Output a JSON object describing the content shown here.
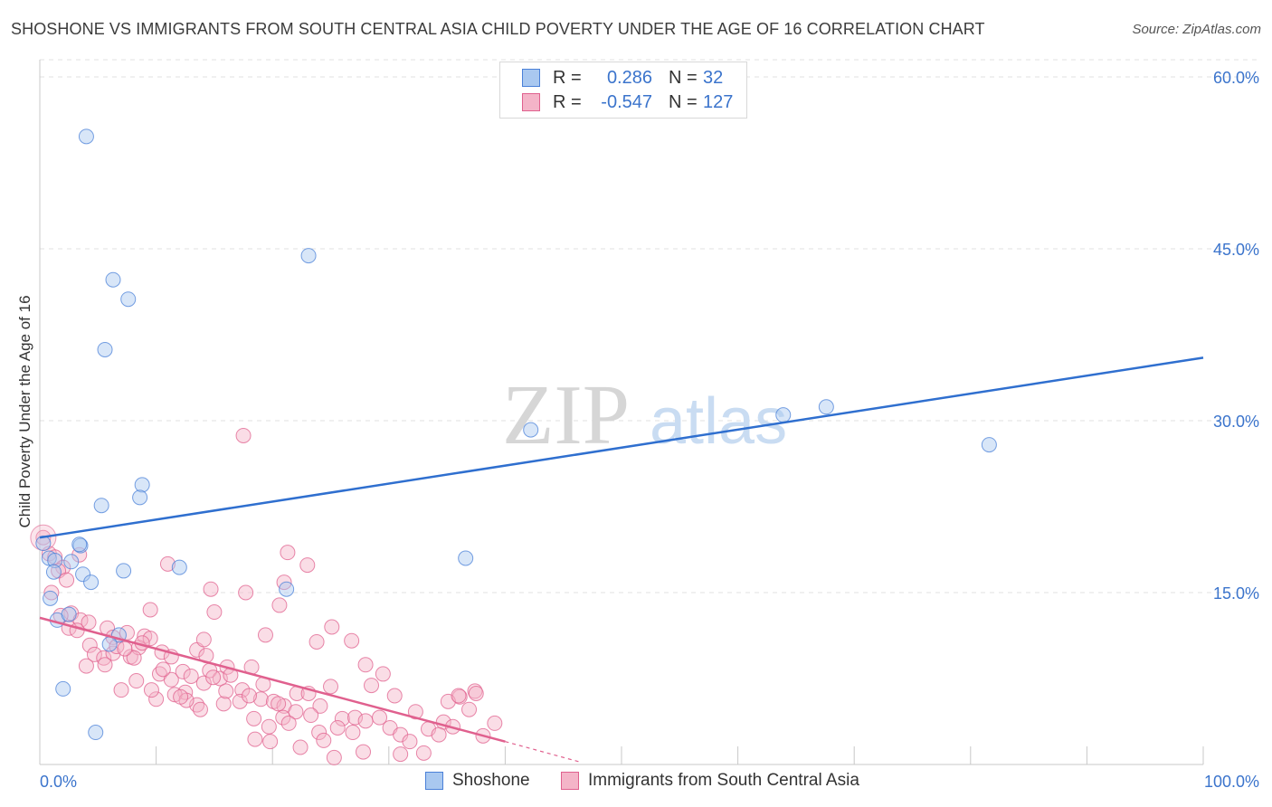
{
  "header": {
    "title": "SHOSHONE VS IMMIGRANTS FROM SOUTH CENTRAL ASIA CHILD POVERTY UNDER THE AGE OF 16 CORRELATION CHART",
    "source": "Source: ZipAtlas.com"
  },
  "watermark": {
    "zip": "ZIP",
    "atlas": "atlas"
  },
  "legend": {
    "rows": [
      {
        "r_label": "R =",
        "r_value": "0.286",
        "n_label": "N =",
        "n_value": "32"
      },
      {
        "r_label": "R =",
        "r_value": "-0.547",
        "n_label": "N =",
        "n_value": "127"
      }
    ]
  },
  "bottom_legend": {
    "series1": "Shoshone",
    "series2": "Immigrants from South Central Asia"
  },
  "chart_data": {
    "type": "scatter",
    "title": "SHOSHONE VS IMMIGRANTS FROM SOUTH CENTRAL ASIA CHILD POVERTY UNDER THE AGE OF 16 CORRELATION CHART",
    "xlabel": "",
    "ylabel": "Child Poverty Under the Age of 16",
    "xlim": [
      0,
      100
    ],
    "ylim": [
      0,
      61.5
    ],
    "x_tick_labels": [
      {
        "value": 0,
        "label": "0.0%"
      },
      {
        "value": 100,
        "label": "100.0%"
      }
    ],
    "y_tick_labels": [
      {
        "value": 15,
        "label": "15.0%"
      },
      {
        "value": 30,
        "label": "30.0%"
      },
      {
        "value": 45,
        "label": "45.0%"
      },
      {
        "value": 60,
        "label": "60.0%"
      }
    ],
    "grid": true,
    "colors": {
      "shoshone": "#4a80d8",
      "immigrants": "#e0608e",
      "shoshone_fill": "#a9c8f0",
      "immigrants_fill": "#f4b4c8"
    },
    "series": [
      {
        "name": "Shoshone",
        "r": 0.286,
        "n": 32,
        "trend": {
          "x0": 0,
          "y0": 19.8,
          "x1": 100,
          "y1": 35.5
        },
        "points": [
          [
            4.0,
            54.8
          ],
          [
            23.1,
            44.4
          ],
          [
            6.3,
            42.3
          ],
          [
            7.6,
            40.6
          ],
          [
            5.6,
            36.2
          ],
          [
            42.2,
            29.2
          ],
          [
            63.9,
            30.5
          ],
          [
            67.6,
            31.2
          ],
          [
            81.6,
            27.9
          ],
          [
            8.8,
            24.4
          ],
          [
            8.6,
            23.3
          ],
          [
            5.3,
            22.6
          ],
          [
            36.6,
            18.0
          ],
          [
            0.3,
            19.3
          ],
          [
            0.8,
            18.0
          ],
          [
            1.3,
            17.8
          ],
          [
            2.7,
            17.7
          ],
          [
            3.5,
            19.1
          ],
          [
            3.4,
            19.2
          ],
          [
            12.0,
            17.2
          ],
          [
            7.2,
            16.9
          ],
          [
            1.2,
            16.8
          ],
          [
            3.7,
            16.6
          ],
          [
            4.4,
            15.9
          ],
          [
            21.2,
            15.3
          ],
          [
            0.9,
            14.5
          ],
          [
            1.5,
            12.6
          ],
          [
            6.8,
            11.3
          ],
          [
            2.5,
            13.1
          ],
          [
            2.0,
            6.6
          ],
          [
            4.8,
            2.8
          ],
          [
            6.0,
            10.5
          ]
        ]
      },
      {
        "name": "Immigrants from South Central Asia",
        "r": -0.547,
        "n": 127,
        "trend": {
          "x0": 0,
          "y0": 12.8,
          "x1": 40,
          "y1": 2.0,
          "dash_to_x": 46.5,
          "dash_to_y": 0.2
        },
        "points": [
          [
            0.3,
            19.8
          ],
          [
            0.8,
            18.4
          ],
          [
            1.3,
            18.1
          ],
          [
            2.0,
            17.2
          ],
          [
            1.6,
            16.9
          ],
          [
            3.4,
            18.3
          ],
          [
            2.3,
            16.1
          ],
          [
            1.0,
            15.0
          ],
          [
            2.7,
            13.2
          ],
          [
            3.5,
            12.6
          ],
          [
            2.5,
            11.9
          ],
          [
            1.8,
            13.0
          ],
          [
            3.2,
            11.7
          ],
          [
            4.2,
            12.4
          ],
          [
            5.8,
            11.9
          ],
          [
            6.3,
            11.1
          ],
          [
            7.5,
            11.5
          ],
          [
            9.0,
            11.2
          ],
          [
            4.3,
            10.4
          ],
          [
            4.7,
            9.6
          ],
          [
            5.5,
            9.3
          ],
          [
            6.3,
            9.7
          ],
          [
            7.8,
            9.4
          ],
          [
            8.5,
            10.2
          ],
          [
            8.1,
            9.3
          ],
          [
            9.5,
            11.0
          ],
          [
            10.5,
            9.8
          ],
          [
            11.3,
            9.4
          ],
          [
            4.0,
            8.6
          ],
          [
            5.6,
            8.7
          ],
          [
            6.6,
            10.3
          ],
          [
            7.3,
            10.1
          ],
          [
            8.8,
            10.6
          ],
          [
            10.3,
            7.9
          ],
          [
            11.3,
            7.4
          ],
          [
            12.3,
            8.1
          ],
          [
            13.0,
            7.7
          ],
          [
            14.1,
            7.1
          ],
          [
            13.5,
            10.0
          ],
          [
            14.1,
            10.9
          ],
          [
            14.6,
            8.2
          ],
          [
            15.5,
            7.5
          ],
          [
            16.1,
            8.5
          ],
          [
            17.4,
            6.5
          ],
          [
            18.2,
            8.5
          ],
          [
            19.0,
            5.7
          ],
          [
            20.1,
            5.5
          ],
          [
            21.0,
            5.1
          ],
          [
            22.1,
            6.2
          ],
          [
            23.1,
            6.2
          ],
          [
            24.1,
            5.1
          ],
          [
            25.0,
            6.8
          ],
          [
            26.0,
            4.0
          ],
          [
            27.1,
            4.1
          ],
          [
            28.5,
            6.9
          ],
          [
            29.5,
            7.9
          ],
          [
            30.1,
            3.2
          ],
          [
            31.0,
            2.6
          ],
          [
            32.3,
            4.6
          ],
          [
            33.4,
            3.1
          ],
          [
            34.7,
            3.7
          ],
          [
            36.1,
            5.9
          ],
          [
            37.4,
            6.4
          ],
          [
            38.1,
            2.5
          ],
          [
            39.1,
            3.6
          ],
          [
            9.5,
            13.5
          ],
          [
            11.0,
            17.5
          ],
          [
            14.7,
            15.3
          ],
          [
            15.0,
            13.3
          ],
          [
            17.7,
            15.0
          ],
          [
            19.4,
            11.3
          ],
          [
            20.6,
            13.9
          ],
          [
            21.0,
            15.9
          ],
          [
            21.3,
            18.5
          ],
          [
            23.0,
            17.4
          ],
          [
            23.8,
            10.7
          ],
          [
            25.1,
            12.0
          ],
          [
            26.8,
            10.8
          ],
          [
            28.0,
            8.7
          ],
          [
            17.5,
            28.7
          ],
          [
            12.5,
            6.3
          ],
          [
            10.0,
            5.7
          ],
          [
            13.5,
            5.2
          ],
          [
            15.8,
            5.3
          ],
          [
            17.2,
            5.5
          ],
          [
            18.4,
            4.0
          ],
          [
            19.7,
            3.3
          ],
          [
            20.9,
            4.1
          ],
          [
            22.0,
            4.6
          ],
          [
            23.3,
            4.3
          ],
          [
            24.0,
            2.8
          ],
          [
            25.6,
            3.2
          ],
          [
            26.9,
            2.8
          ],
          [
            28.0,
            3.8
          ],
          [
            29.2,
            4.1
          ],
          [
            30.5,
            6.0
          ],
          [
            31.8,
            2.0
          ],
          [
            33.0,
            1.0
          ],
          [
            34.3,
            2.6
          ],
          [
            35.5,
            3.3
          ],
          [
            36.9,
            4.8
          ],
          [
            7.0,
            6.5
          ],
          [
            8.3,
            7.3
          ],
          [
            9.6,
            6.5
          ],
          [
            10.6,
            8.3
          ],
          [
            11.6,
            6.1
          ],
          [
            12.6,
            5.6
          ],
          [
            13.8,
            4.8
          ],
          [
            14.9,
            7.6
          ],
          [
            16.0,
            6.4
          ],
          [
            18.5,
            2.2
          ],
          [
            19.8,
            2.0
          ],
          [
            21.4,
            3.6
          ],
          [
            22.4,
            1.5
          ],
          [
            24.4,
            2.1
          ],
          [
            25.3,
            0.6
          ],
          [
            27.8,
            1.1
          ],
          [
            31.0,
            0.9
          ],
          [
            35.1,
            5.5
          ],
          [
            36.0,
            6.0
          ],
          [
            37.5,
            6.2
          ],
          [
            12.1,
            5.9
          ],
          [
            14.3,
            9.5
          ],
          [
            16.4,
            7.8
          ],
          [
            18.0,
            6.0
          ],
          [
            19.2,
            7.0
          ],
          [
            20.5,
            5.3
          ]
        ]
      }
    ]
  }
}
